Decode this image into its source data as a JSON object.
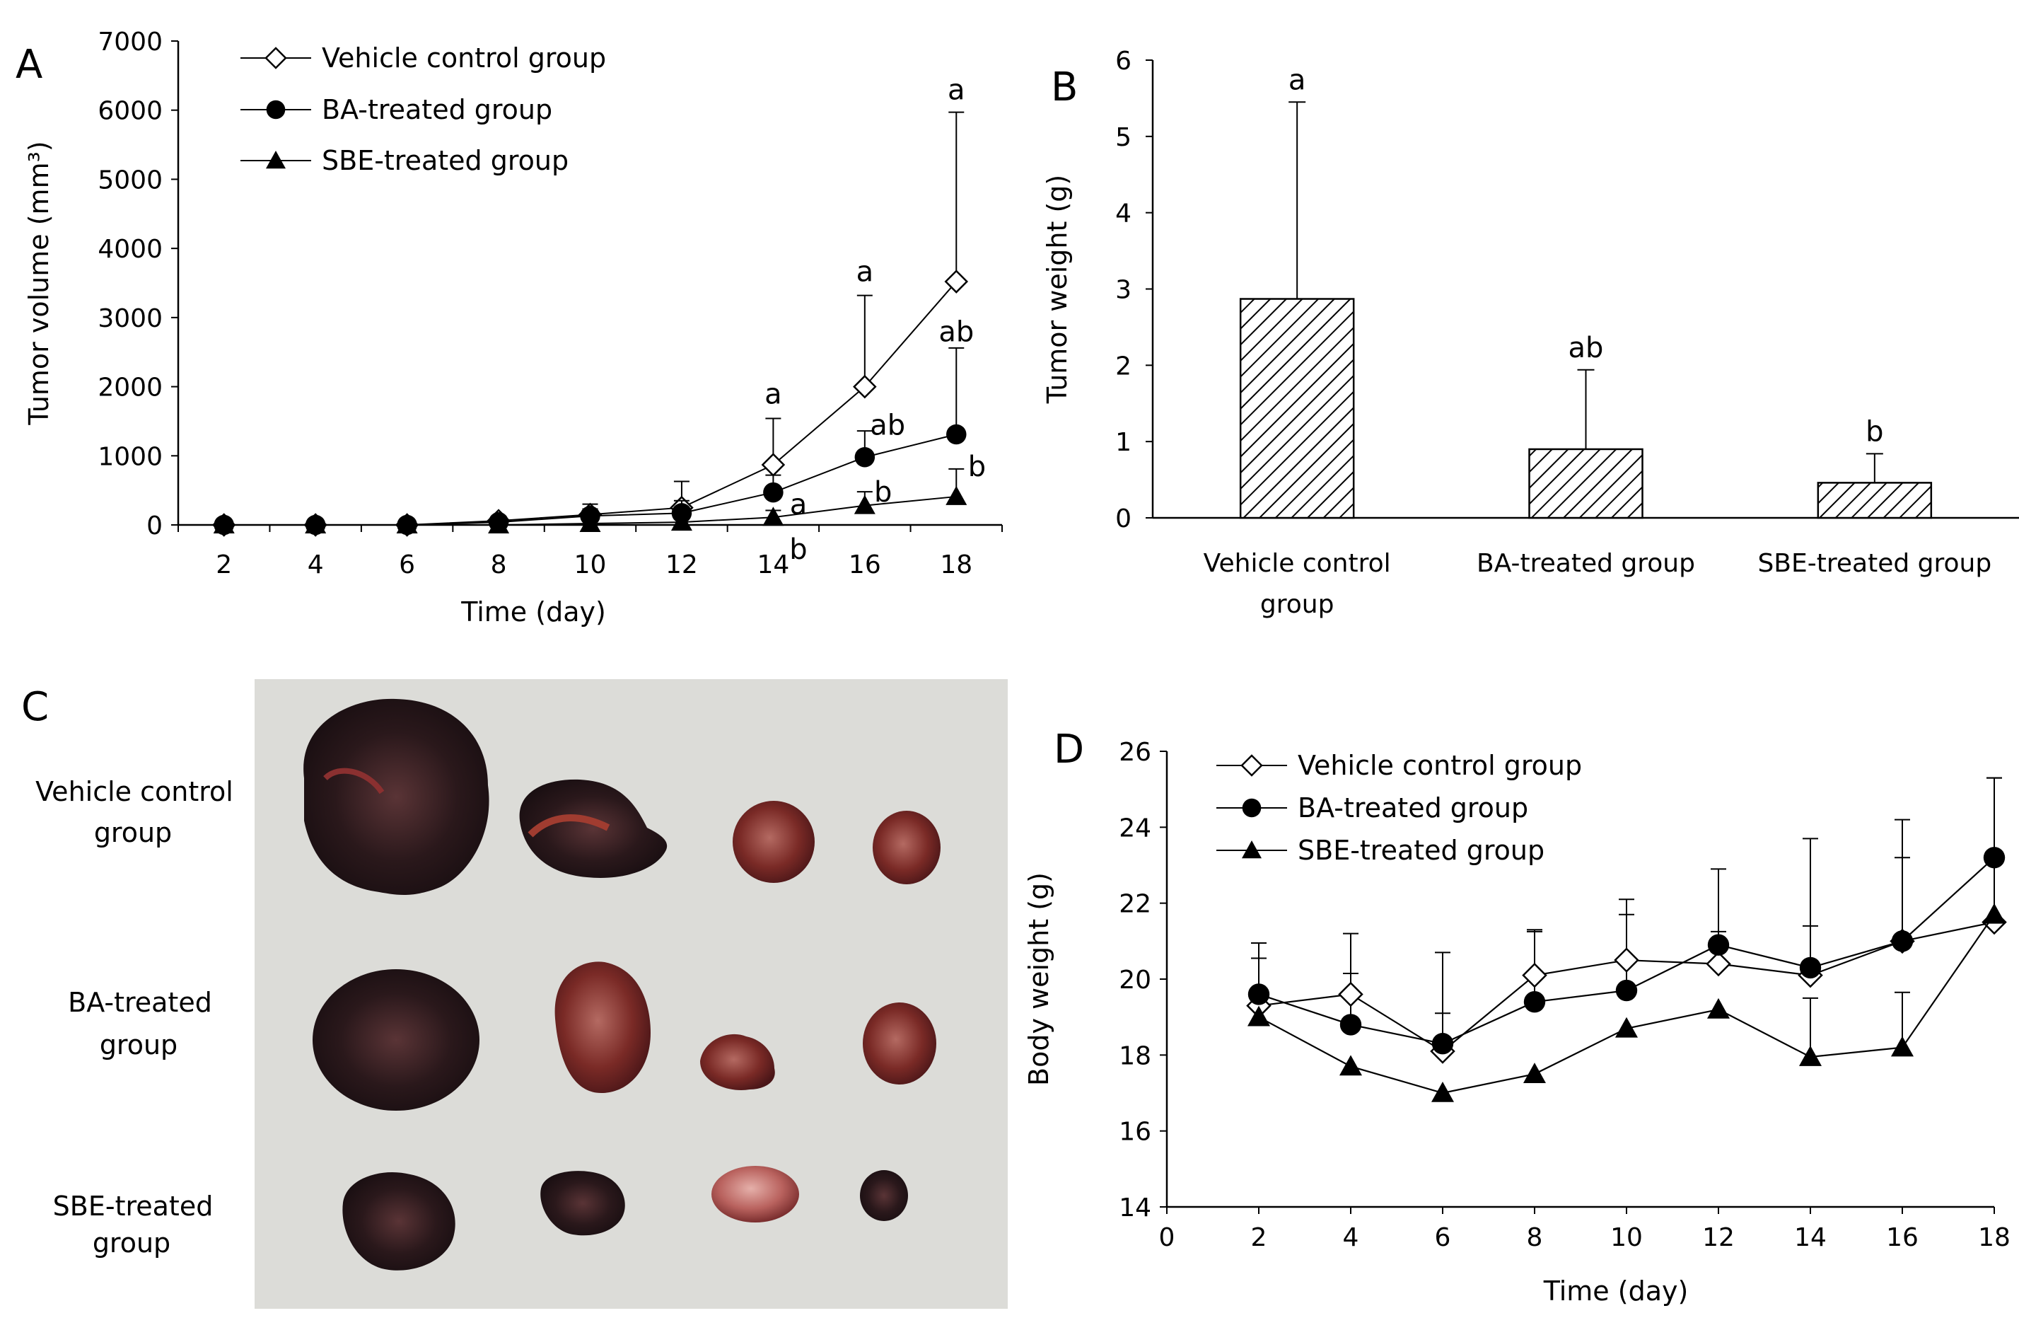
{
  "panels": {
    "A": {
      "letter": "A"
    },
    "B": {
      "letter": "B"
    },
    "C": {
      "letter": "C",
      "row_labels": [
        {
          "line1": "Vehicle control",
          "line2": "group"
        },
        {
          "line1": "BA-treated",
          "line2": "group"
        },
        {
          "line1": "SBE-treated",
          "line2": "group"
        }
      ]
    },
    "D": {
      "letter": "D"
    }
  },
  "colors": {
    "photo_bg": "#dcdcd8",
    "tumor_dark": "#2a1a1c",
    "tumor_red": "#8a2a24"
  },
  "chart_data": [
    {
      "id": "A",
      "type": "line",
      "xlabel": "Time (day)",
      "ylabel": "Tumor volume (mm³)",
      "x": [
        2,
        4,
        6,
        8,
        10,
        12,
        14,
        16,
        18
      ],
      "xlim": [
        1,
        19
      ],
      "ylim": [
        0,
        7000
      ],
      "yticks": [
        0,
        1000,
        2000,
        3000,
        4000,
        5000,
        6000,
        7000
      ],
      "series": [
        {
          "name": "Vehicle control group",
          "marker": "diamond-open",
          "values": [
            0,
            0,
            0,
            60,
            150,
            250,
            870,
            2000,
            3520
          ],
          "errors": [
            0,
            0,
            0,
            40,
            150,
            380,
            670,
            1320,
            2450
          ]
        },
        {
          "name": "BA-treated group",
          "marker": "circle-filled",
          "values": [
            0,
            0,
            0,
            40,
            130,
            170,
            470,
            980,
            1310
          ],
          "errors": [
            0,
            0,
            0,
            30,
            100,
            180,
            250,
            380,
            1250
          ]
        },
        {
          "name": "SBE-treated group",
          "marker": "triangle-filled",
          "values": [
            0,
            0,
            0,
            0,
            20,
            40,
            110,
            280,
            410
          ],
          "errors": [
            0,
            0,
            0,
            0,
            0,
            0,
            100,
            200,
            400
          ]
        }
      ],
      "annotations": [
        {
          "x": 14,
          "y": 1900,
          "text": "a"
        },
        {
          "x": 16,
          "y": 3670,
          "text": "a"
        },
        {
          "x": 18,
          "y": 6300,
          "text": "a"
        },
        {
          "x": 16.5,
          "y": 1450,
          "text": "ab"
        },
        {
          "x": 18,
          "y": 2800,
          "text": "ab"
        },
        {
          "x": 14.55,
          "y": 300,
          "text": "a"
        },
        {
          "x": 14.55,
          "y": -350,
          "text": "b"
        },
        {
          "x": 16.4,
          "y": 480,
          "text": "b"
        },
        {
          "x": 18.45,
          "y": 850,
          "text": "b"
        }
      ]
    },
    {
      "id": "B",
      "type": "bar",
      "ylabel": "Tumor weight (g)",
      "categories": [
        [
          "Vehicle control",
          "group"
        ],
        [
          "BA-treated group"
        ],
        [
          "SBE-treated group"
        ]
      ],
      "values": [
        2.87,
        0.9,
        0.46
      ],
      "errors": [
        2.58,
        1.04,
        0.38
      ],
      "ylim": [
        0,
        6
      ],
      "yticks": [
        0,
        1,
        2,
        3,
        4,
        5,
        6
      ],
      "sig_labels": [
        "a",
        "ab",
        "b"
      ]
    },
    {
      "id": "D",
      "type": "line",
      "xlabel": "Time (day)",
      "ylabel": "Body weight (g)",
      "x": [
        2,
        4,
        6,
        8,
        10,
        12,
        14,
        16,
        18
      ],
      "xlim": [
        0,
        18
      ],
      "xticks": [
        0,
        2,
        4,
        6,
        8,
        10,
        12,
        14,
        16,
        18
      ],
      "ylim": [
        14,
        26
      ],
      "yticks": [
        14,
        16,
        18,
        20,
        22,
        24,
        26
      ],
      "series": [
        {
          "name": "Vehicle control group",
          "marker": "diamond-open",
          "values": [
            19.3,
            19.6,
            18.1,
            20.1,
            20.5,
            20.4,
            20.1,
            21.0,
            21.5
          ],
          "errors": [
            1.65,
            1.6,
            2.6,
            1.2,
            1.6,
            2.5,
            3.6,
            3.2,
            3.8
          ]
        },
        {
          "name": "BA-treated group",
          "marker": "circle-filled",
          "values": [
            19.6,
            18.8,
            18.3,
            19.4,
            19.7,
            20.9,
            20.3,
            21.0,
            23.2
          ],
          "errors": [
            0.95,
            1.35,
            0.8,
            1.85,
            2.0,
            0.35,
            1.1,
            2.2,
            2.1
          ]
        },
        {
          "name": "SBE-treated group",
          "marker": "triangle-filled",
          "values": [
            19.0,
            17.7,
            17.0,
            17.5,
            18.7,
            19.2,
            17.95,
            18.2,
            21.7
          ],
          "errors": [
            0.0,
            0.0,
            0.0,
            0.0,
            0.0,
            0.0,
            1.55,
            1.45,
            0.0
          ]
        }
      ]
    }
  ]
}
